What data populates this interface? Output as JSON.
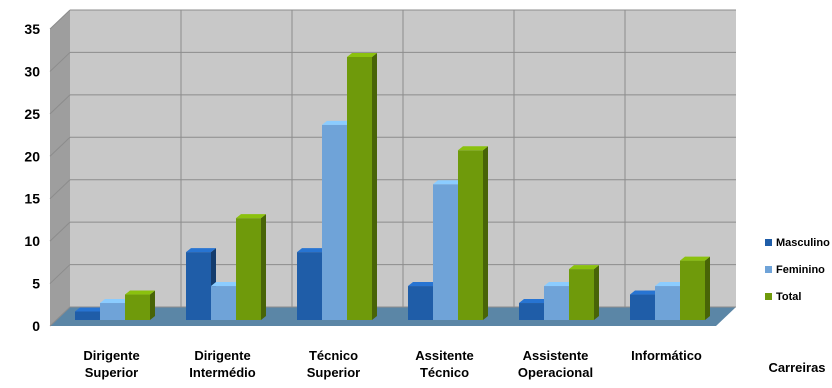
{
  "chart_data": {
    "type": "bar",
    "title": "",
    "xlabel": "Carreiras",
    "ylabel": "",
    "ylim": [
      0,
      35
    ],
    "yticks": [
      0,
      5,
      10,
      15,
      20,
      25,
      30,
      35
    ],
    "grid": true,
    "legend_position": "right",
    "categories": [
      [
        "Dirigente",
        "Superior"
      ],
      [
        "Dirigente",
        "Intermédio"
      ],
      [
        "Técnico",
        "Superior"
      ],
      [
        "Assitente",
        "Técnico"
      ],
      [
        "Assistente",
        "Operacional"
      ],
      [
        "Informático"
      ]
    ],
    "series": [
      {
        "name": "Masculino",
        "values": [
          1,
          8,
          8,
          4,
          2,
          3
        ],
        "color": "#1F5DA8"
      },
      {
        "name": "Feminino",
        "values": [
          2,
          4,
          23,
          16,
          4,
          4
        ],
        "color": "#6FA3D8"
      },
      {
        "name": "Total",
        "values": [
          3,
          12,
          31,
          20,
          6,
          7
        ],
        "color": "#6F9A0B"
      }
    ],
    "colors": {
      "wall": "#C8C8C8",
      "side_wall": "#9E9E9E",
      "floor": "#5B86A6",
      "gridline": "#8C8C8C"
    }
  }
}
